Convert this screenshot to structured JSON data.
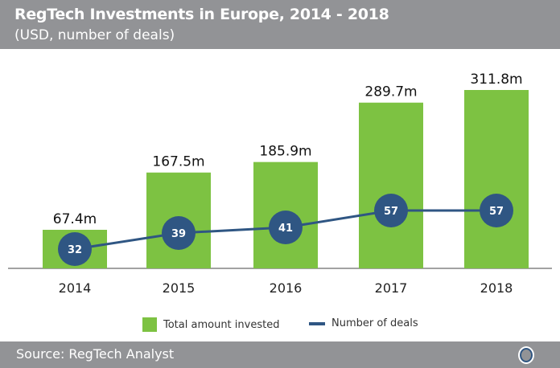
{
  "header": {
    "title": "RegTech Investments in Europe, 2014 - 2018",
    "subtitle": "(USD, number of deals)"
  },
  "footer": {
    "source": "Source: RegTech Analyst"
  },
  "colors": {
    "bar": "#7dc242",
    "line": "#2f5683",
    "header": "#929396"
  },
  "chart_data": {
    "type": "bar+line",
    "categories": [
      "2014",
      "2015",
      "2016",
      "2017",
      "2018"
    ],
    "series": [
      {
        "name": "Total amount invested",
        "type": "bar",
        "values": [
          67.4,
          167.5,
          185.9,
          289.7,
          311.8
        ],
        "labels": [
          "67.4m",
          "167.5m",
          "185.9m",
          "289.7m",
          "311.8m"
        ]
      },
      {
        "name": "Number of deals",
        "type": "line",
        "values": [
          32,
          39,
          41,
          57,
          57
        ],
        "labels": [
          "32",
          "39",
          "41",
          "57",
          "57"
        ]
      }
    ],
    "legend": "bottom"
  }
}
